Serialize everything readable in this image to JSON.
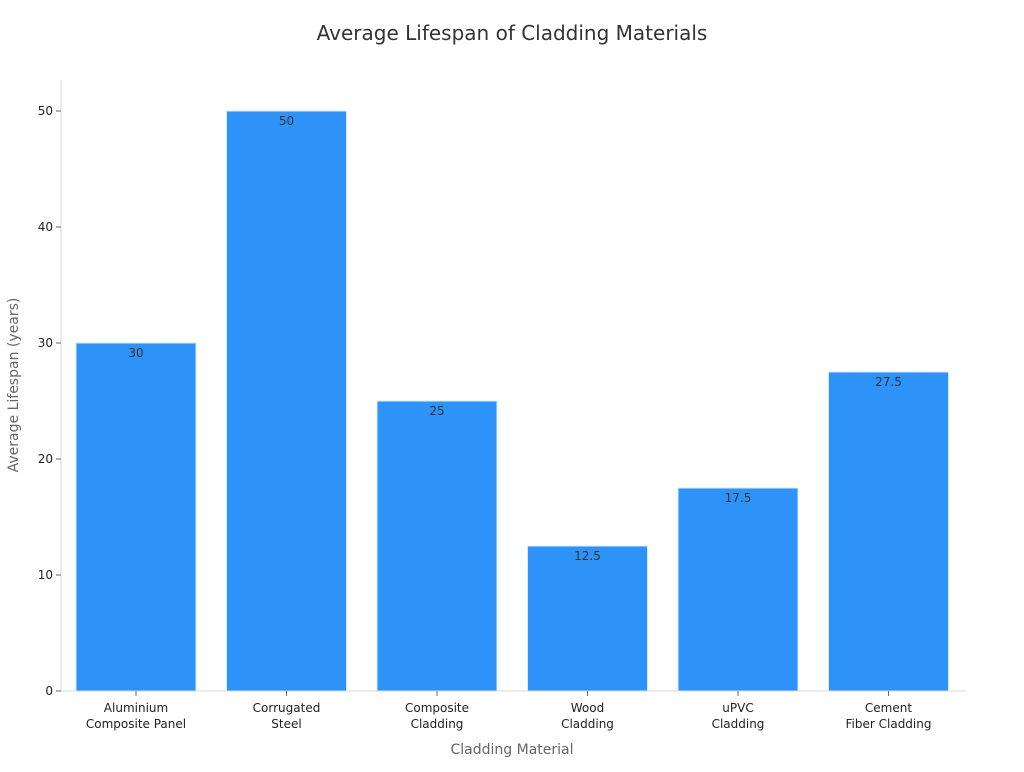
{
  "chart_data": {
    "type": "bar",
    "title": "Average Lifespan of Cladding Materials",
    "xlabel": "Cladding Material",
    "ylabel": "Average Lifespan (years)",
    "categories": [
      [
        "Aluminium",
        "Composite Panel"
      ],
      [
        "Corrugated",
        "Steel"
      ],
      [
        "Composite",
        "Cladding"
      ],
      [
        "Wood",
        "Cladding"
      ],
      [
        "uPVC",
        "Cladding"
      ],
      [
        "Cement",
        "Fiber Cladding"
      ]
    ],
    "values": [
      30,
      50,
      25,
      12.5,
      17.5,
      27.5
    ],
    "value_labels": [
      "30",
      "50",
      "25",
      "12.5",
      "17.5",
      "27.5"
    ],
    "yticks": [
      0,
      10,
      20,
      30,
      40,
      50
    ],
    "ylim": [
      0,
      52.5
    ],
    "bar_color": "#2E93F9",
    "grid": false,
    "legend": "none"
  }
}
